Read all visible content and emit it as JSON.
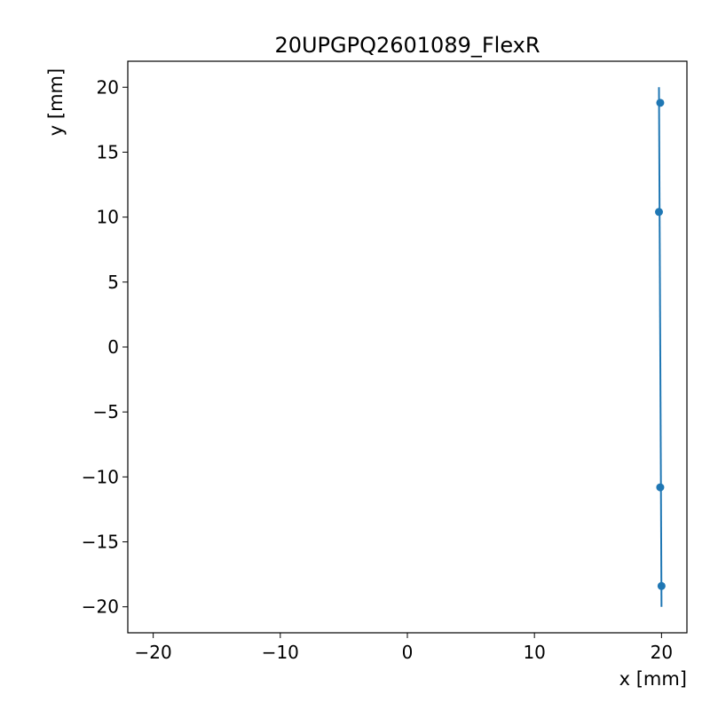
{
  "chart_data": {
    "type": "scatter",
    "title": "20UPGPQ2601089_FlexR",
    "xlabel": "x [mm]",
    "ylabel": "y [mm]",
    "xlim": [
      -22,
      22
    ],
    "ylim": [
      -22,
      22
    ],
    "xticks": [
      -20,
      -10,
      0,
      10,
      20
    ],
    "yticks": [
      -20,
      -15,
      -10,
      -5,
      0,
      5,
      10,
      15,
      20
    ],
    "xtick_labels": [
      "−20",
      "−10",
      "0",
      "10",
      "20"
    ],
    "ytick_labels": [
      "−20",
      "−15",
      "−10",
      "−5",
      "0",
      "5",
      "10",
      "15",
      "20"
    ],
    "grid": false,
    "color": "#1f77b4",
    "points": [
      {
        "x": 19.9,
        "y": 18.8
      },
      {
        "x": 19.8,
        "y": 10.4
      },
      {
        "x": 19.9,
        "y": -10.8
      },
      {
        "x": 20.0,
        "y": -18.4
      }
    ],
    "fit_line": {
      "x": [
        19.8,
        20.0
      ],
      "y": [
        20.0,
        -20.0
      ]
    }
  }
}
